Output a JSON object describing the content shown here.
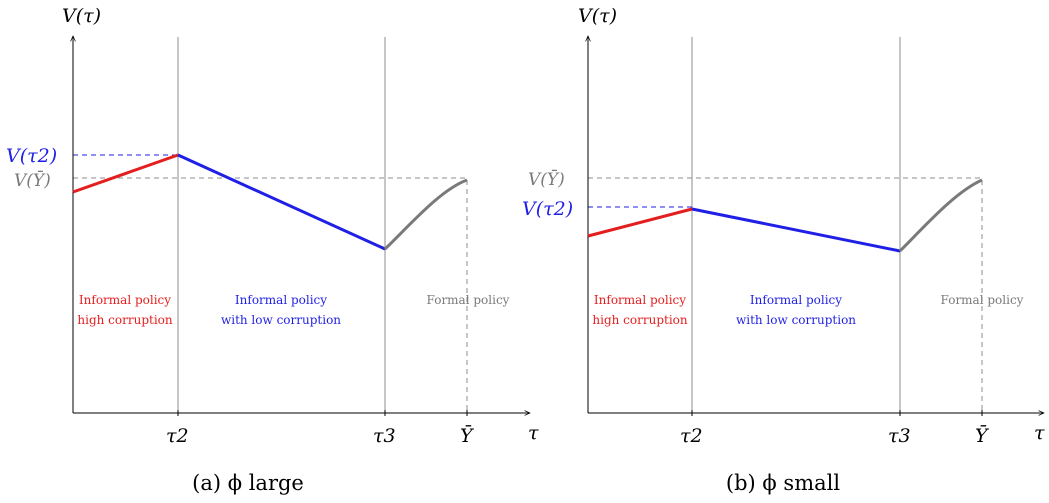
{
  "colors": {
    "red": "#e41e1e",
    "blue": "#1f1fe6",
    "gray": "#7a7a7a",
    "axis": "#000000",
    "grid": "#8c8c8c"
  },
  "panels": [
    {
      "caption": "(a) ϕ large",
      "y_axis_label": "V(τ)",
      "x_axis_label": "τ",
      "ticks": {
        "tau2": "τ2",
        "tau3": "τ3",
        "ybar": "Ȳ"
      },
      "y_marks": {
        "v_tau2": "V(τ2)",
        "v_ybar": "V(Ȳ)"
      },
      "regions": {
        "red_line1": "Informal policy",
        "red_line2": "high corruption",
        "blue_line1": "Informal policy",
        "blue_line2": "with low corruption",
        "formal": "Formal policy"
      }
    },
    {
      "caption": "(b) ϕ small",
      "y_axis_label": "V(τ)",
      "x_axis_label": "τ",
      "ticks": {
        "tau2": "τ2",
        "tau3": "τ3",
        "ybar": "Ȳ"
      },
      "y_marks": {
        "v_tau2": "V(τ2)",
        "v_ybar": "V(Ȳ)"
      },
      "regions": {
        "red_line1": "Informal policy",
        "red_line2": "high corruption",
        "blue_line1": "Informal policy",
        "blue_line2": "with low corruption",
        "formal": "Formal policy"
      }
    }
  ]
}
